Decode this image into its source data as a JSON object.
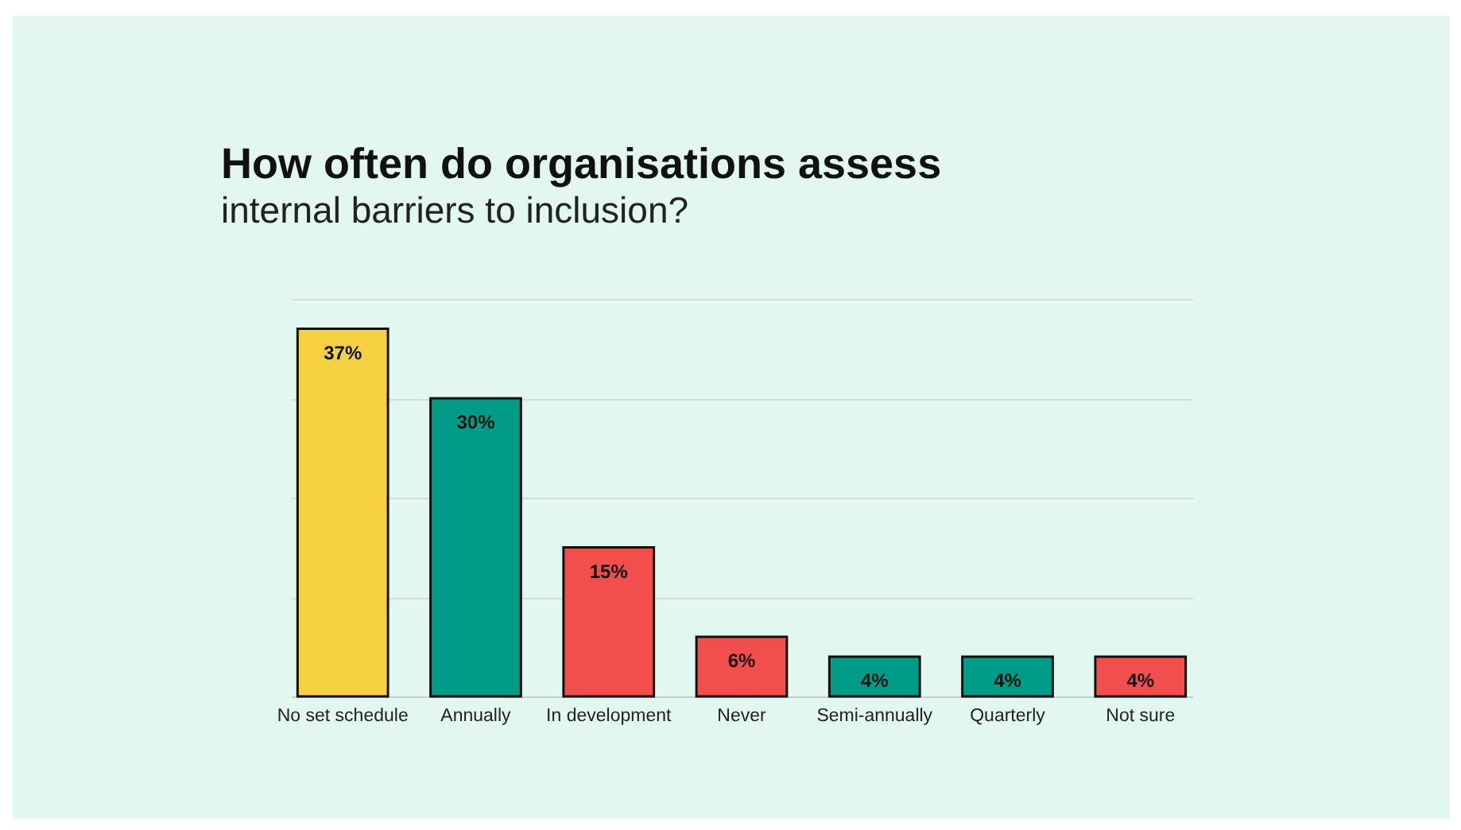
{
  "chart_data": {
    "type": "bar",
    "title": "How often do organisations assess",
    "subtitle": "internal barriers to inclusion?",
    "categories": [
      "No set schedule",
      "Annually",
      "In development",
      "Never",
      "Semi-annually",
      "Quarterly",
      "Not sure"
    ],
    "values": [
      37,
      30,
      15,
      6,
      4,
      4,
      4
    ],
    "colors": [
      "#f5d142",
      "#009b87",
      "#f24e4e",
      "#f24e4e",
      "#009b87",
      "#009b87",
      "#f24e4e"
    ],
    "value_labels": [
      "37%",
      "30%",
      "15%",
      "6%",
      "4%",
      "4%",
      "4%"
    ],
    "grid": "y",
    "tick_labels": "x"
  }
}
